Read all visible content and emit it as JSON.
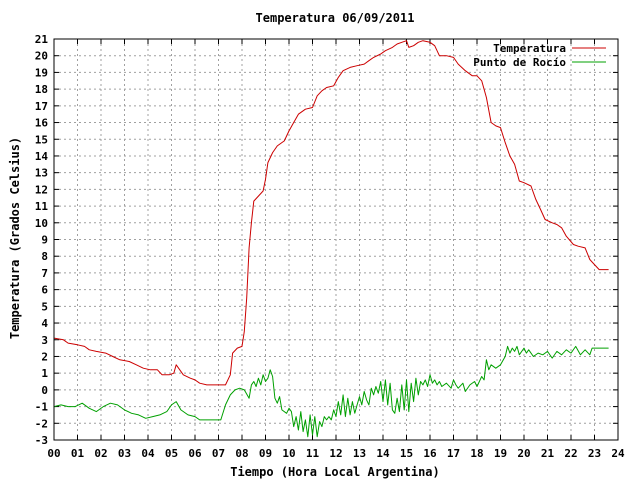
{
  "chart_data": {
    "type": "line",
    "title": "Temperatura 06/09/2011",
    "xlabel": "Tiempo (Hora Local Argentina)",
    "ylabel": "Temperatura (Grados Celsius)",
    "xlim": [
      0,
      24
    ],
    "ylim": [
      -3,
      21
    ],
    "x_ticks": [
      "00",
      "01",
      "02",
      "03",
      "04",
      "05",
      "06",
      "07",
      "08",
      "09",
      "10",
      "11",
      "12",
      "13",
      "14",
      "15",
      "16",
      "17",
      "18",
      "19",
      "20",
      "21",
      "22",
      "23",
      "24"
    ],
    "y_ticks": [
      -3,
      -2,
      -1,
      0,
      1,
      2,
      3,
      4,
      5,
      6,
      7,
      8,
      9,
      10,
      11,
      12,
      13,
      14,
      15,
      16,
      17,
      18,
      19,
      20,
      21
    ],
    "grid": true,
    "legend_position": "top-right",
    "series": [
      {
        "name": "Temperatura",
        "color": "#cc0000",
        "points": [
          [
            0.0,
            3.1
          ],
          [
            0.4,
            3.0
          ],
          [
            0.6,
            2.8
          ],
          [
            1.0,
            2.7
          ],
          [
            1.3,
            2.6
          ],
          [
            1.5,
            2.4
          ],
          [
            1.8,
            2.3
          ],
          [
            2.2,
            2.2
          ],
          [
            2.5,
            2.0
          ],
          [
            2.8,
            1.8
          ],
          [
            3.2,
            1.7
          ],
          [
            3.5,
            1.5
          ],
          [
            3.8,
            1.3
          ],
          [
            4.1,
            1.2
          ],
          [
            4.4,
            1.2
          ],
          [
            4.6,
            0.9
          ],
          [
            4.9,
            0.9
          ],
          [
            5.1,
            1.0
          ],
          [
            5.2,
            1.5
          ],
          [
            5.3,
            1.3
          ],
          [
            5.5,
            0.9
          ],
          [
            5.8,
            0.7
          ],
          [
            6.0,
            0.6
          ],
          [
            6.2,
            0.4
          ],
          [
            6.5,
            0.3
          ],
          [
            6.8,
            0.3
          ],
          [
            7.0,
            0.3
          ],
          [
            7.3,
            0.3
          ],
          [
            7.5,
            0.9
          ],
          [
            7.6,
            2.2
          ],
          [
            7.8,
            2.5
          ],
          [
            8.0,
            2.6
          ],
          [
            8.1,
            3.5
          ],
          [
            8.2,
            5.5
          ],
          [
            8.3,
            8.5
          ],
          [
            8.4,
            10.0
          ],
          [
            8.5,
            11.3
          ],
          [
            8.7,
            11.6
          ],
          [
            8.9,
            11.9
          ],
          [
            9.0,
            12.6
          ],
          [
            9.1,
            13.6
          ],
          [
            9.3,
            14.2
          ],
          [
            9.5,
            14.6
          ],
          [
            9.8,
            14.9
          ],
          [
            10.0,
            15.5
          ],
          [
            10.2,
            16.0
          ],
          [
            10.4,
            16.5
          ],
          [
            10.7,
            16.8
          ],
          [
            11.0,
            16.9
          ],
          [
            11.2,
            17.6
          ],
          [
            11.4,
            17.9
          ],
          [
            11.6,
            18.1
          ],
          [
            11.9,
            18.2
          ],
          [
            12.1,
            18.7
          ],
          [
            12.3,
            19.1
          ],
          [
            12.6,
            19.3
          ],
          [
            12.9,
            19.4
          ],
          [
            13.2,
            19.5
          ],
          [
            13.4,
            19.7
          ],
          [
            13.6,
            19.9
          ],
          [
            13.9,
            20.1
          ],
          [
            14.1,
            20.3
          ],
          [
            14.4,
            20.5
          ],
          [
            14.6,
            20.7
          ],
          [
            14.8,
            20.8
          ],
          [
            15.0,
            20.9
          ],
          [
            15.1,
            20.5
          ],
          [
            15.3,
            20.6
          ],
          [
            15.5,
            20.8
          ],
          [
            15.7,
            20.9
          ],
          [
            16.0,
            20.8
          ],
          [
            16.2,
            20.6
          ],
          [
            16.4,
            20.0
          ],
          [
            16.7,
            20.0
          ],
          [
            17.0,
            19.9
          ],
          [
            17.2,
            19.5
          ],
          [
            17.5,
            19.1
          ],
          [
            17.8,
            18.8
          ],
          [
            18.0,
            18.8
          ],
          [
            18.2,
            18.5
          ],
          [
            18.4,
            17.5
          ],
          [
            18.6,
            16.0
          ],
          [
            18.8,
            15.8
          ],
          [
            19.0,
            15.7
          ],
          [
            19.2,
            14.8
          ],
          [
            19.4,
            14.0
          ],
          [
            19.6,
            13.5
          ],
          [
            19.8,
            12.5
          ],
          [
            20.0,
            12.4
          ],
          [
            20.3,
            12.2
          ],
          [
            20.5,
            11.4
          ],
          [
            20.7,
            10.8
          ],
          [
            20.9,
            10.2
          ],
          [
            21.2,
            10.0
          ],
          [
            21.4,
            9.9
          ],
          [
            21.6,
            9.7
          ],
          [
            21.8,
            9.2
          ],
          [
            22.1,
            8.7
          ],
          [
            22.3,
            8.6
          ],
          [
            22.6,
            8.5
          ],
          [
            22.8,
            7.8
          ],
          [
            23.0,
            7.5
          ],
          [
            23.2,
            7.2
          ],
          [
            23.6,
            7.2
          ]
        ]
      },
      {
        "name": "Punto de Rocío",
        "color": "#00a000",
        "points": [
          [
            0.0,
            -1.0
          ],
          [
            0.3,
            -0.9
          ],
          [
            0.6,
            -1.0
          ],
          [
            0.9,
            -1.0
          ],
          [
            1.2,
            -0.8
          ],
          [
            1.5,
            -1.1
          ],
          [
            1.8,
            -1.3
          ],
          [
            2.1,
            -1.0
          ],
          [
            2.4,
            -0.8
          ],
          [
            2.7,
            -0.9
          ],
          [
            3.0,
            -1.2
          ],
          [
            3.3,
            -1.4
          ],
          [
            3.6,
            -1.5
          ],
          [
            3.9,
            -1.7
          ],
          [
            4.2,
            -1.6
          ],
          [
            4.5,
            -1.5
          ],
          [
            4.8,
            -1.3
          ],
          [
            5.0,
            -0.9
          ],
          [
            5.2,
            -0.7
          ],
          [
            5.4,
            -1.2
          ],
          [
            5.7,
            -1.5
          ],
          [
            6.0,
            -1.6
          ],
          [
            6.2,
            -1.8
          ],
          [
            6.5,
            -1.8
          ],
          [
            6.8,
            -1.8
          ],
          [
            7.1,
            -1.8
          ],
          [
            7.3,
            -0.9
          ],
          [
            7.5,
            -0.3
          ],
          [
            7.7,
            0.0
          ],
          [
            7.9,
            0.1
          ],
          [
            8.1,
            0.0
          ],
          [
            8.3,
            -0.5
          ],
          [
            8.4,
            0.3
          ],
          [
            8.5,
            0.5
          ],
          [
            8.6,
            0.2
          ],
          [
            8.7,
            0.7
          ],
          [
            8.8,
            0.3
          ],
          [
            8.9,
            0.9
          ],
          [
            9.0,
            0.5
          ],
          [
            9.1,
            0.7
          ],
          [
            9.2,
            1.2
          ],
          [
            9.3,
            0.8
          ],
          [
            9.4,
            -0.5
          ],
          [
            9.5,
            -0.8
          ],
          [
            9.6,
            -0.4
          ],
          [
            9.7,
            -1.2
          ],
          [
            9.9,
            -1.4
          ],
          [
            10.0,
            -1.1
          ],
          [
            10.1,
            -1.3
          ],
          [
            10.2,
            -2.2
          ],
          [
            10.3,
            -1.6
          ],
          [
            10.4,
            -2.4
          ],
          [
            10.5,
            -1.3
          ],
          [
            10.6,
            -2.5
          ],
          [
            10.7,
            -1.8
          ],
          [
            10.8,
            -2.8
          ],
          [
            10.9,
            -1.5
          ],
          [
            11.0,
            -2.7
          ],
          [
            11.1,
            -1.6
          ],
          [
            11.2,
            -2.8
          ],
          [
            11.3,
            -1.9
          ],
          [
            11.4,
            -2.2
          ],
          [
            11.5,
            -1.6
          ],
          [
            11.6,
            -1.8
          ],
          [
            11.7,
            -1.6
          ],
          [
            11.8,
            -1.8
          ],
          [
            11.9,
            -1.2
          ],
          [
            12.0,
            -1.6
          ],
          [
            12.1,
            -0.7
          ],
          [
            12.2,
            -1.5
          ],
          [
            12.3,
            -0.3
          ],
          [
            12.4,
            -1.6
          ],
          [
            12.5,
            -0.5
          ],
          [
            12.6,
            -1.5
          ],
          [
            12.7,
            -0.7
          ],
          [
            12.8,
            -1.4
          ],
          [
            12.9,
            -0.9
          ],
          [
            13.0,
            -0.4
          ],
          [
            13.1,
            -0.9
          ],
          [
            13.2,
            -0.1
          ],
          [
            13.3,
            -0.6
          ],
          [
            13.4,
            -0.9
          ],
          [
            13.5,
            0.1
          ],
          [
            13.6,
            -0.3
          ],
          [
            13.7,
            0.2
          ],
          [
            13.8,
            -0.2
          ],
          [
            13.9,
            0.5
          ],
          [
            14.0,
            -0.7
          ],
          [
            14.1,
            0.6
          ],
          [
            14.2,
            -0.9
          ],
          [
            14.3,
            0.4
          ],
          [
            14.4,
            -1.2
          ],
          [
            14.5,
            -1.4
          ],
          [
            14.6,
            -0.5
          ],
          [
            14.7,
            -1.3
          ],
          [
            14.8,
            0.3
          ],
          [
            14.9,
            -1.2
          ],
          [
            15.0,
            0.6
          ],
          [
            15.1,
            -1.3
          ],
          [
            15.2,
            0.4
          ],
          [
            15.3,
            -0.7
          ],
          [
            15.4,
            0.7
          ],
          [
            15.5,
            -0.3
          ],
          [
            15.6,
            0.5
          ],
          [
            15.7,
            0.3
          ],
          [
            15.8,
            0.6
          ],
          [
            15.9,
            0.2
          ],
          [
            16.0,
            0.9
          ],
          [
            16.1,
            0.4
          ],
          [
            16.2,
            0.6
          ],
          [
            16.3,
            0.3
          ],
          [
            16.4,
            0.5
          ],
          [
            16.5,
            0.2
          ],
          [
            16.7,
            0.4
          ],
          [
            16.9,
            0.1
          ],
          [
            17.0,
            0.6
          ],
          [
            17.1,
            0.3
          ],
          [
            17.2,
            0.1
          ],
          [
            17.4,
            0.4
          ],
          [
            17.5,
            -0.1
          ],
          [
            17.7,
            0.3
          ],
          [
            17.9,
            0.5
          ],
          [
            18.0,
            0.2
          ],
          [
            18.2,
            0.8
          ],
          [
            18.3,
            0.6
          ],
          [
            18.4,
            1.8
          ],
          [
            18.5,
            1.2
          ],
          [
            18.6,
            1.5
          ],
          [
            18.8,
            1.3
          ],
          [
            19.0,
            1.5
          ],
          [
            19.2,
            2.0
          ],
          [
            19.3,
            2.6
          ],
          [
            19.4,
            2.2
          ],
          [
            19.5,
            2.5
          ],
          [
            19.6,
            2.3
          ],
          [
            19.7,
            2.6
          ],
          [
            19.8,
            2.1
          ],
          [
            20.0,
            2.5
          ],
          [
            20.1,
            2.2
          ],
          [
            20.2,
            2.4
          ],
          [
            20.4,
            2.0
          ],
          [
            20.6,
            2.2
          ],
          [
            20.8,
            2.1
          ],
          [
            21.0,
            2.3
          ],
          [
            21.2,
            1.9
          ],
          [
            21.4,
            2.3
          ],
          [
            21.6,
            2.1
          ],
          [
            21.8,
            2.4
          ],
          [
            22.0,
            2.2
          ],
          [
            22.2,
            2.6
          ],
          [
            22.4,
            2.1
          ],
          [
            22.6,
            2.4
          ],
          [
            22.8,
            2.1
          ],
          [
            22.9,
            2.5
          ],
          [
            23.1,
            2.5
          ],
          [
            23.6,
            2.5
          ]
        ]
      }
    ]
  }
}
